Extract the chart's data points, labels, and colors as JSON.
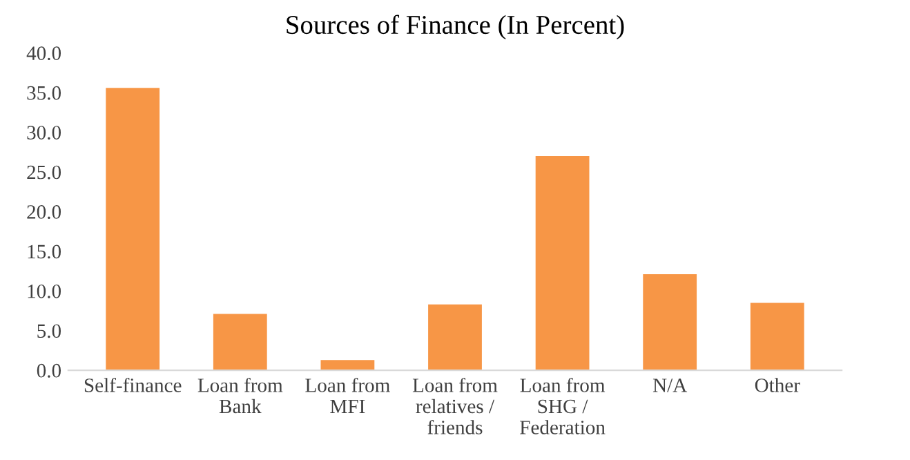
{
  "chart_data": {
    "type": "bar",
    "title": "Sources of Finance (In Percent)",
    "categories": [
      "Self-finance",
      "Loan from\nBank",
      "Loan from\nMFI",
      "Loan from\nrelatives /\nfriends",
      "Loan from\nSHG /\nFederation",
      "N/A",
      "Other"
    ],
    "values": [
      35.6,
      7.1,
      1.3,
      8.3,
      27.0,
      12.1,
      8.5
    ],
    "color": "#f79646",
    "ylim": [
      0,
      40
    ],
    "yticks": [
      {
        "value": 0,
        "label": "0.0"
      },
      {
        "value": 5,
        "label": "5.0"
      },
      {
        "value": 10,
        "label": "10.0"
      },
      {
        "value": 15,
        "label": "15.0"
      },
      {
        "value": 20,
        "label": "20.0"
      },
      {
        "value": 25,
        "label": "25.0"
      },
      {
        "value": 30,
        "label": "30.0"
      },
      {
        "value": 35,
        "label": "35.0"
      },
      {
        "value": 40,
        "label": "40.0"
      }
    ],
    "grid": false
  }
}
